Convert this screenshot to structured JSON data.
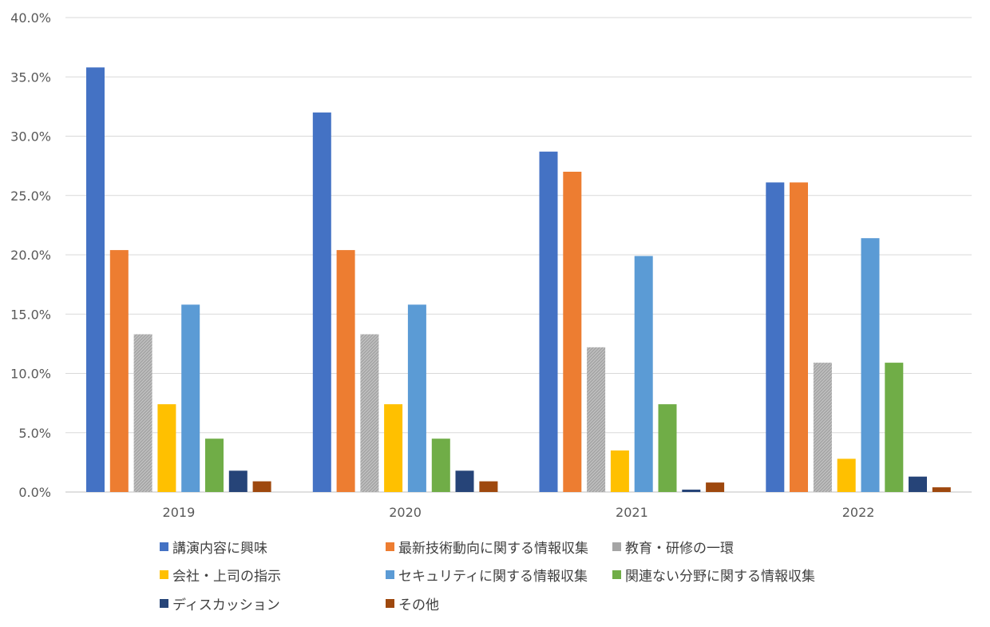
{
  "chart_data": {
    "type": "bar",
    "categories": [
      "2019",
      "2020",
      "2021",
      "2022"
    ],
    "ylim": [
      0,
      40
    ],
    "yticks": [
      0,
      5,
      10,
      15,
      20,
      25,
      30,
      35,
      40
    ],
    "ytick_labels": [
      "0.0%",
      "5.0%",
      "10.0%",
      "15.0%",
      "20.0%",
      "25.0%",
      "30.0%",
      "35.0%",
      "40.0%"
    ],
    "grid": true,
    "legend_position": "bottom",
    "series": [
      {
        "name": "講演内容に興味",
        "color": "#4472C4",
        "values": [
          35.8,
          32.0,
          28.7,
          26.1
        ]
      },
      {
        "name": "最新技術動向に関する情報収集",
        "color": "#ED7D31",
        "values": [
          20.4,
          20.4,
          27.0,
          26.1
        ]
      },
      {
        "name": "教育・研修の一環",
        "color": "#A5A5A5",
        "pattern": "hatch",
        "values": [
          13.3,
          13.3,
          12.2,
          10.9
        ]
      },
      {
        "name": "会社・上司の指示",
        "color": "#FFC000",
        "values": [
          7.4,
          7.4,
          3.5,
          2.8
        ]
      },
      {
        "name": "セキュリティに関する情報収集",
        "color": "#5B9BD5",
        "values": [
          15.8,
          15.8,
          19.9,
          21.4
        ]
      },
      {
        "name": "関連ない分野に関する情報収集",
        "color": "#70AD47",
        "values": [
          4.5,
          4.5,
          7.4,
          10.9
        ]
      },
      {
        "name": "ディスカッション",
        "color": "#264478",
        "values": [
          1.8,
          1.8,
          0.2,
          1.3
        ]
      },
      {
        "name": "その他",
        "color": "#9E480E",
        "values": [
          0.9,
          0.9,
          0.8,
          0.4
        ]
      }
    ]
  }
}
